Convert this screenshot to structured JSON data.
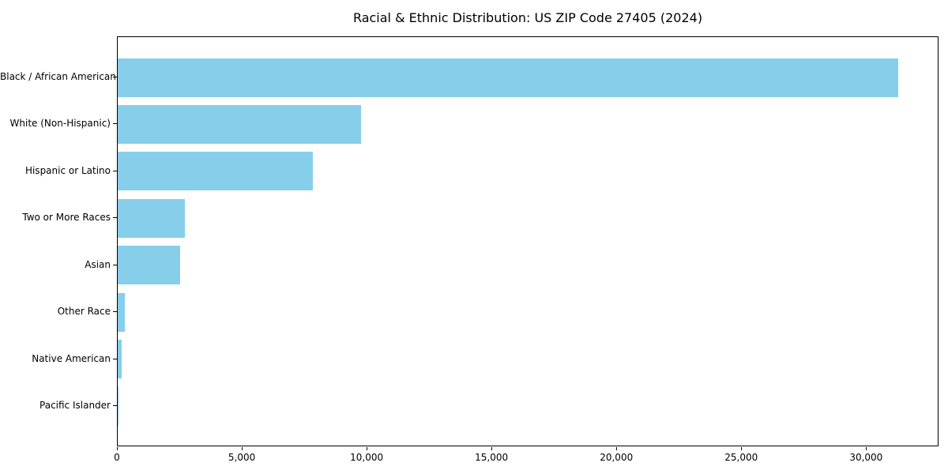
{
  "title": "Racial & Ethnic Distribution: US ZIP Code 27405 (2024)",
  "chart_data": {
    "type": "bar",
    "orientation": "horizontal",
    "title": "Racial & Ethnic Distribution: US ZIP Code 27405 (2024)",
    "xlabel": "",
    "ylabel": "",
    "categories": [
      "Black / African American",
      "White (Non-Hispanic)",
      "Hispanic or Latino",
      "Two or More Races",
      "Asian",
      "Other Race",
      "Native American",
      "Pacific Islander"
    ],
    "values": [
      31250,
      9750,
      7800,
      2700,
      2500,
      270,
      150,
      20
    ],
    "xlim": [
      0,
      32900
    ],
    "x_ticks": [
      0,
      5000,
      10000,
      15000,
      20000,
      25000,
      30000
    ],
    "x_tick_labels": [
      "0",
      "5,000",
      "10,000",
      "15,000",
      "20,000",
      "25,000",
      "30,000"
    ],
    "grid": false,
    "legend": null,
    "bar_color": "#87CEEB"
  },
  "colors": {
    "bar": "#87CEEB",
    "axis": "#000000",
    "text": "#000000",
    "background": "#ffffff"
  }
}
